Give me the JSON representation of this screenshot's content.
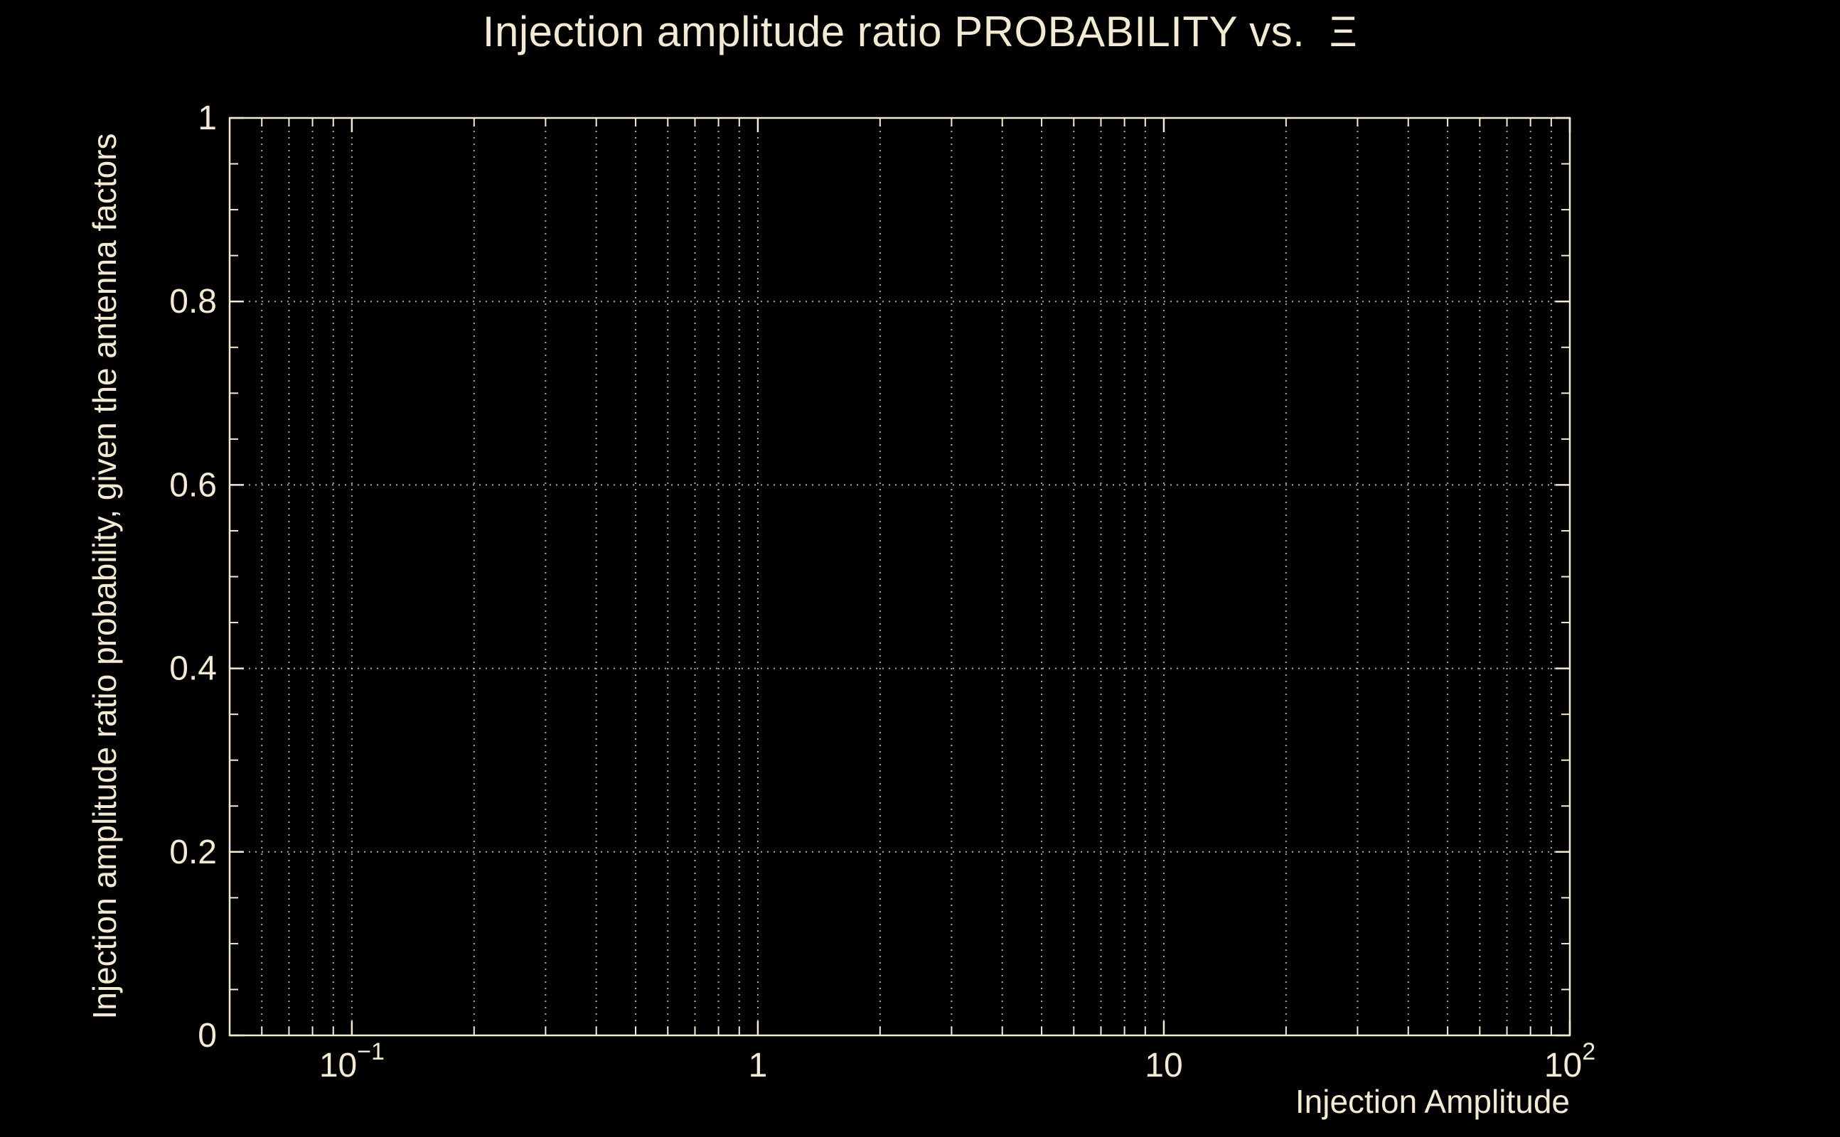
{
  "figure": {
    "background": "#000000",
    "foreground": "#F3EAD3",
    "grid_color": "#F3EAD3"
  },
  "chart_data": {
    "type": "line",
    "title": "Injection amplitude ratio PROBABILITY vs.  Ξ",
    "xlabel": "Injection Amplitude",
    "ylabel": "Injection amplitude ratio probability, given the antenna factors",
    "x_scale": "log",
    "y_scale": "linear",
    "xlim": [
      0.05,
      100
    ],
    "ylim": [
      0,
      1
    ],
    "grid": "on",
    "x_minor_grid": "on",
    "legend": "none",
    "xticks": [
      {
        "value": 0.1,
        "label": "10",
        "exponent": "−1"
      },
      {
        "value": 1,
        "label": "1"
      },
      {
        "value": 10,
        "label": "10"
      },
      {
        "value": 100,
        "label": "10",
        "exponent": "2"
      }
    ],
    "yticks": [
      {
        "value": 0,
        "label": "0"
      },
      {
        "value": 0.2,
        "label": "0.2"
      },
      {
        "value": 0.4,
        "label": "0.4"
      },
      {
        "value": 0.6,
        "label": "0.6"
      },
      {
        "value": 0.8,
        "label": "0.8"
      },
      {
        "value": 1,
        "label": "1"
      }
    ],
    "y_minor_tick_step": 0.05,
    "series": []
  }
}
